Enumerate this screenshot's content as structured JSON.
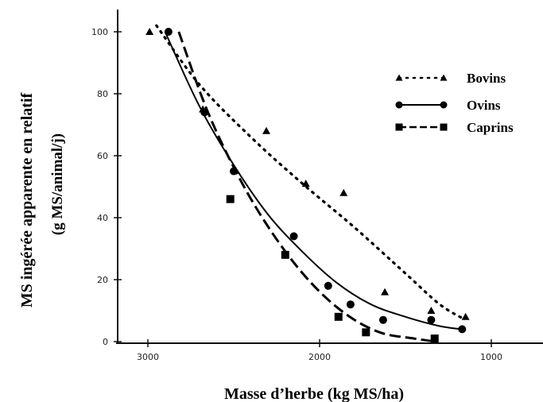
{
  "chart_data": {
    "type": "scatter",
    "xlabel": "Masse d’herbe (kg MS/ha)",
    "ylabel_line1": "MS ingérée apparente en relatif",
    "ylabel_line2": "(g MS/animal/j)",
    "xlim": [
      3000,
      1000
    ],
    "ylim": [
      0,
      100
    ],
    "x_ticks": [
      3000,
      2000,
      1000
    ],
    "x_tick_labels": [
      "3000",
      "2000",
      "1000"
    ],
    "y_ticks": [
      0,
      20,
      40,
      60,
      80,
      100
    ],
    "y_tick_labels": [
      "0",
      "20",
      "40",
      "60",
      "80",
      "100"
    ],
    "grid": false,
    "legend_position": "top-right",
    "series": [
      {
        "name": "Bovins",
        "marker": "triangle",
        "line_style": "dotted",
        "color": "#000000",
        "points": [
          [
            2990,
            100
          ],
          [
            2680,
            75
          ],
          [
            2310,
            68
          ],
          [
            2080,
            51
          ],
          [
            1860,
            48
          ],
          [
            1620,
            16
          ],
          [
            1350,
            10
          ],
          [
            1150,
            8
          ]
        ],
        "fit": [
          [
            2950,
            102
          ],
          [
            2700,
            83
          ],
          [
            2400,
            66
          ],
          [
            2100,
            51
          ],
          [
            1800,
            37
          ],
          [
            1500,
            22
          ],
          [
            1300,
            12
          ],
          [
            1150,
            7
          ]
        ]
      },
      {
        "name": "Ovins",
        "marker": "circle",
        "line_style": "solid",
        "color": "#000000",
        "points": [
          [
            2880,
            100
          ],
          [
            2670,
            74
          ],
          [
            2500,
            55
          ],
          [
            2150,
            34
          ],
          [
            1950,
            18
          ],
          [
            1820,
            12
          ],
          [
            1630,
            7
          ],
          [
            1350,
            7
          ],
          [
            1170,
            4
          ]
        ],
        "fit": [
          [
            2900,
            100
          ],
          [
            2700,
            76
          ],
          [
            2500,
            57
          ],
          [
            2300,
            41
          ],
          [
            2100,
            29
          ],
          [
            1900,
            19
          ],
          [
            1700,
            12
          ],
          [
            1500,
            8
          ],
          [
            1300,
            5
          ],
          [
            1170,
            4
          ]
        ]
      },
      {
        "name": "Caprins",
        "marker": "square",
        "line_style": "dashed",
        "color": "#000000",
        "points": [
          [
            2520,
            46
          ],
          [
            2200,
            28
          ],
          [
            1890,
            8
          ],
          [
            1730,
            3
          ],
          [
            1330,
            1
          ]
        ],
        "fit": [
          [
            2820,
            100
          ],
          [
            2650,
            74
          ],
          [
            2450,
            51
          ],
          [
            2250,
            33
          ],
          [
            2050,
            19
          ],
          [
            1850,
            9
          ],
          [
            1650,
            3
          ],
          [
            1450,
            1
          ],
          [
            1320,
            0
          ]
        ]
      }
    ]
  }
}
